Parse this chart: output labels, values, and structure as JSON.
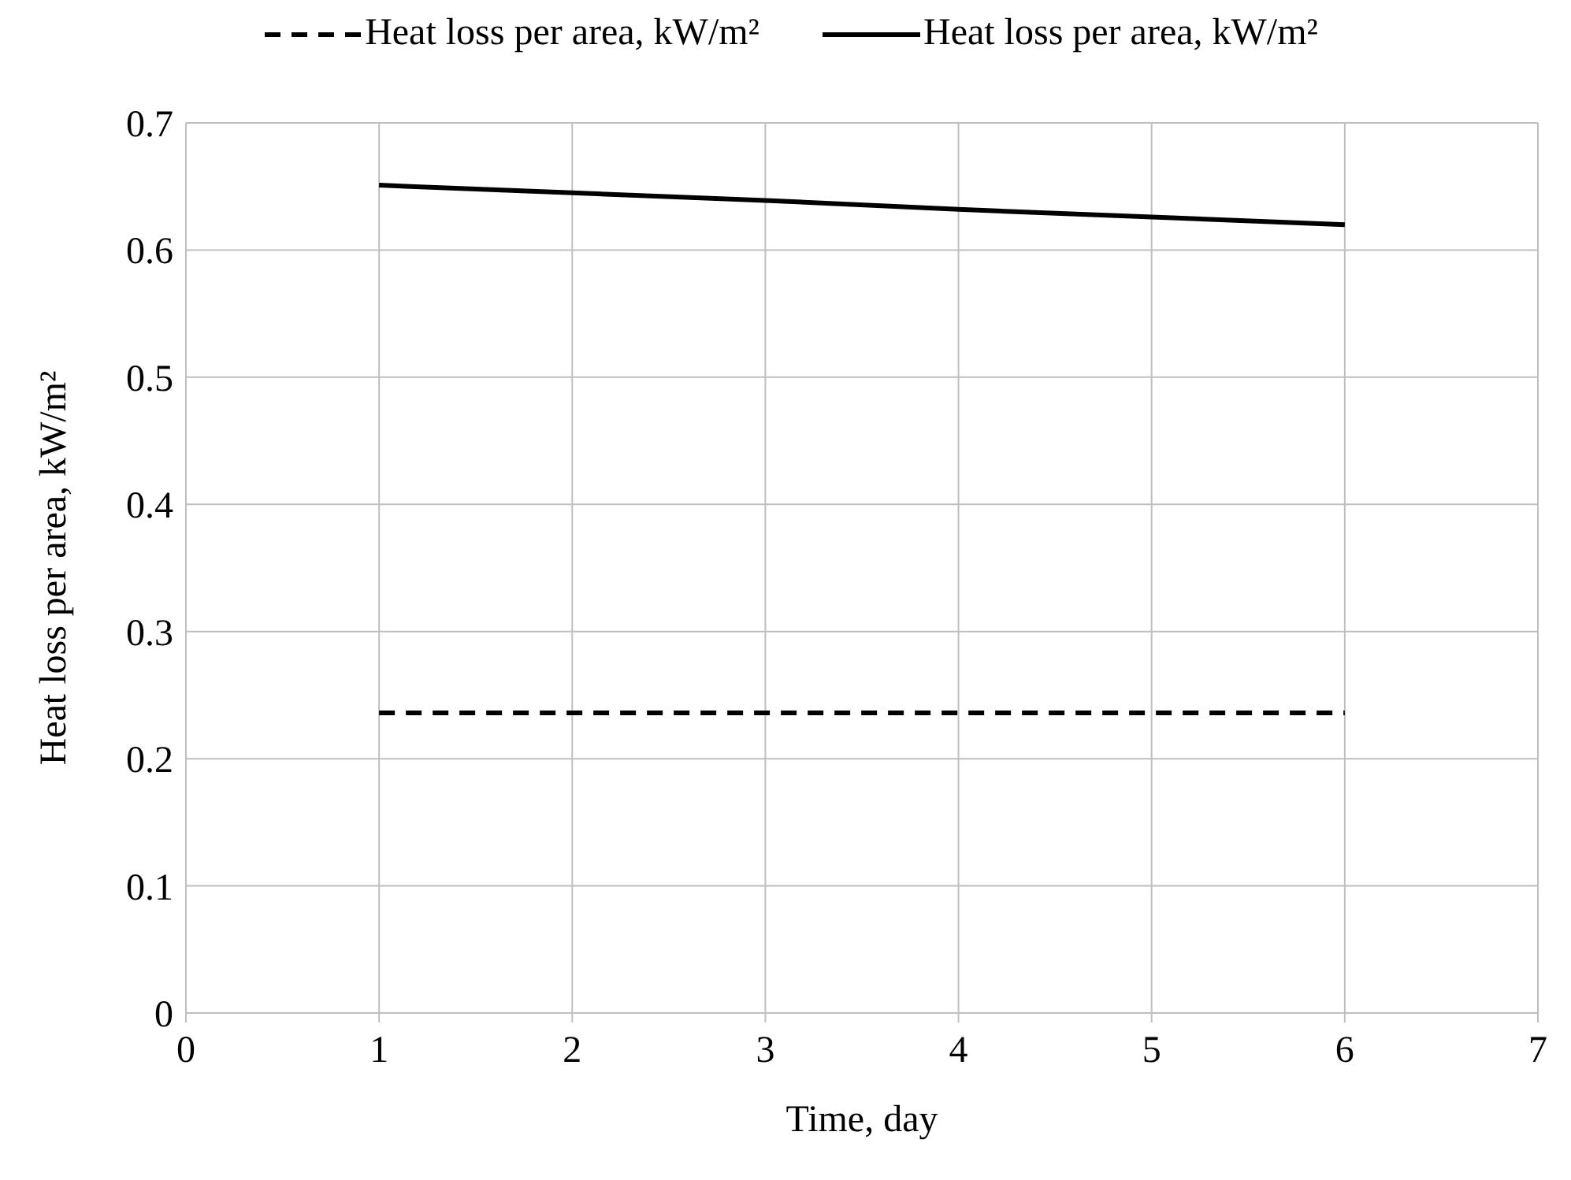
{
  "chart_data": {
    "type": "line",
    "xlabel": "Time, day",
    "ylabel": "Heat loss per area, kW/m²",
    "x": [
      1,
      2,
      3,
      4,
      5,
      6
    ],
    "series": [
      {
        "name": "Heat loss per area, kW/m²",
        "color": "#000000",
        "line_style": "dashed",
        "values": [
          0.236,
          0.236,
          0.236,
          0.236,
          0.236,
          0.236
        ]
      },
      {
        "name": "Heat loss per area, kW/m²",
        "color": "#000000",
        "line_style": "solid",
        "values": [
          0.651,
          0.645,
          0.639,
          0.632,
          0.626,
          0.62
        ]
      }
    ],
    "xlim": [
      0,
      7
    ],
    "xticks": [
      0,
      1,
      2,
      3,
      4,
      5,
      6,
      7
    ],
    "ylim": [
      0,
      0.7
    ],
    "yticks": [
      0,
      0.1,
      0.2,
      0.3,
      0.4,
      0.5,
      0.6,
      0.7
    ],
    "grid": true,
    "legend": "top",
    "marker": "none"
  }
}
